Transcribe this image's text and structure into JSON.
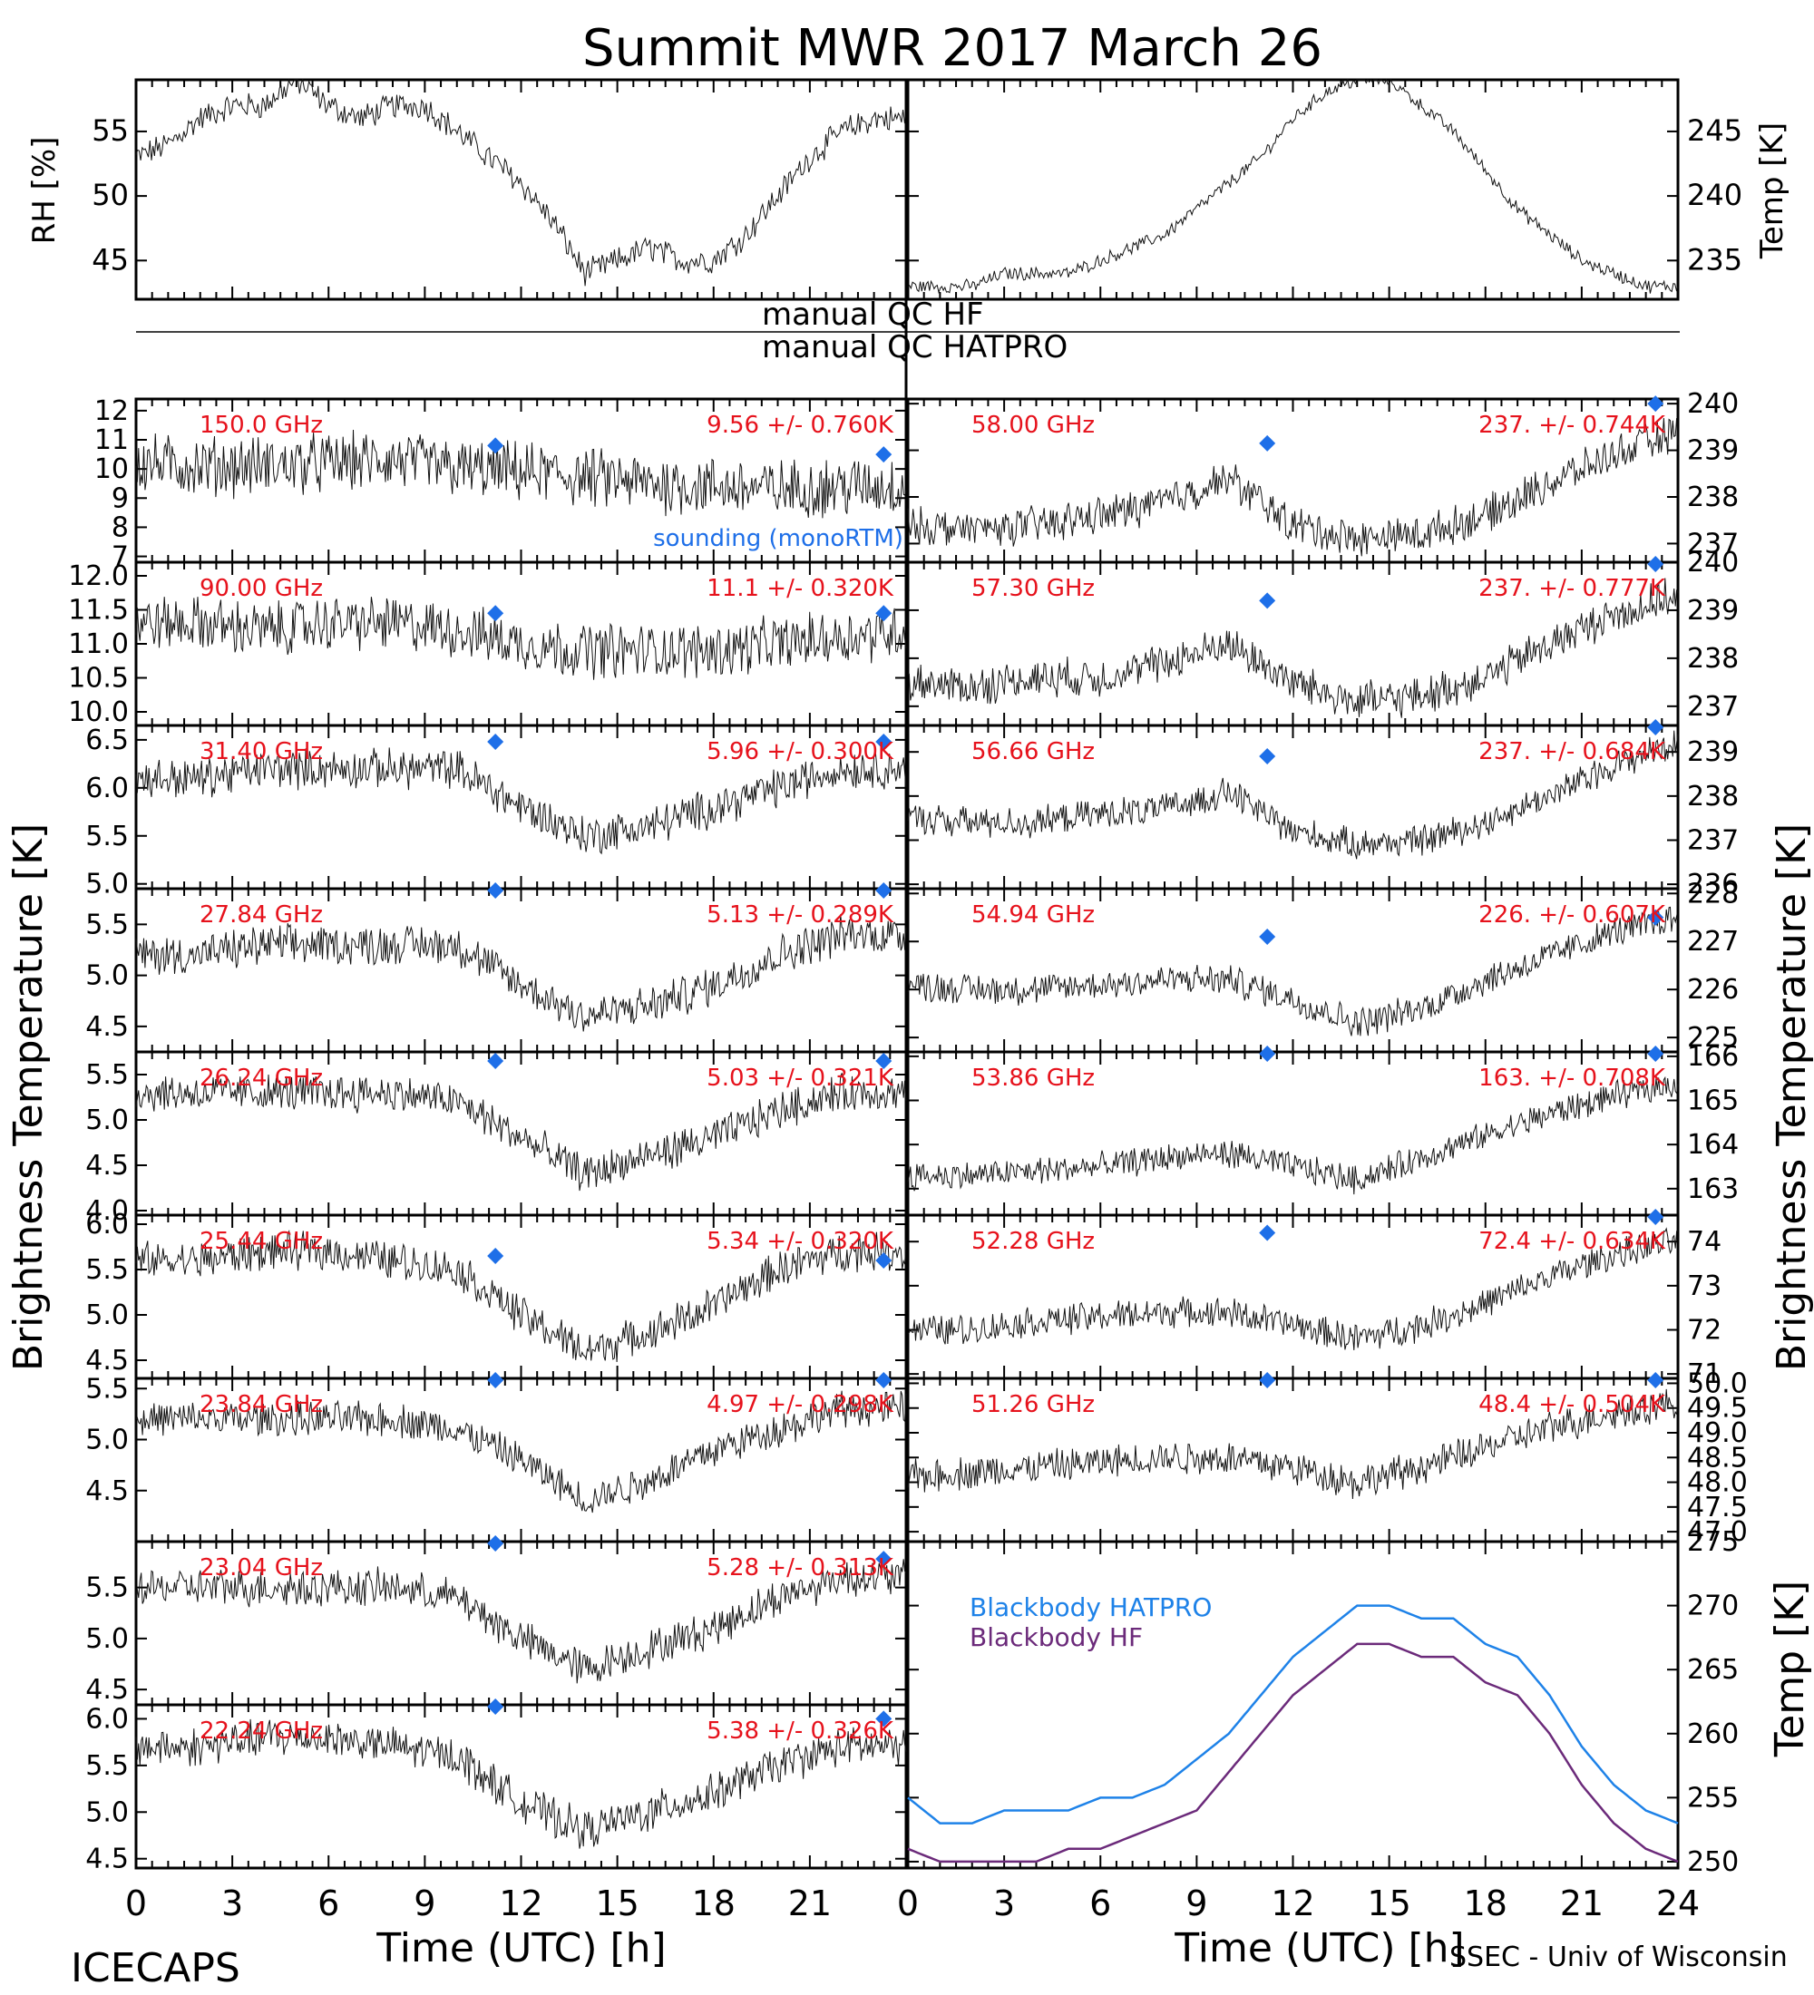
{
  "title": "Summit MWR 2017 March 26",
  "footer": {
    "left": "ICECAPS",
    "right": "SSEC - Univ of Wisconsin"
  },
  "qc": {
    "hf": "manual QC HF",
    "hatpro": "manual QC HATPRO"
  },
  "axes": {
    "xlabel": "Time (UTC) [h]",
    "ylabel_tb": "Brightness Temperature [K]",
    "left_ticks": [
      "0",
      "3",
      "6",
      "9",
      "12",
      "15",
      "18",
      "21"
    ],
    "right_ticks": [
      "0",
      "3",
      "6",
      "9",
      "12",
      "15",
      "18",
      "21",
      "24"
    ],
    "met_left_ylabel": "RH [%]",
    "met_right_ylabel": "Temp [K]",
    "bb_ylabel": "Temp [K]"
  },
  "colors": {
    "sounding": "#1e6fe8",
    "hatpro": "#1e82e8",
    "hf": "#6b2a7a",
    "label": "#e6121c"
  },
  "chart_data": [
    {
      "type": "line",
      "name": "RH",
      "x": [
        0,
        1,
        2,
        3,
        4,
        5,
        6,
        7,
        8,
        9,
        10,
        11,
        12,
        13,
        14,
        15,
        16,
        17,
        18,
        19,
        20,
        21,
        22,
        23,
        24
      ],
      "y": [
        53,
        54,
        56,
        57,
        57,
        59,
        57,
        56,
        57,
        57,
        55,
        53,
        51,
        48,
        44,
        45,
        46,
        45,
        45,
        47,
        50,
        53,
        55,
        56,
        56
      ],
      "ylim": [
        42,
        59
      ],
      "ticks": [
        45,
        50,
        55
      ]
    },
    {
      "type": "line",
      "name": "Temp",
      "x": [
        0,
        1,
        2,
        3,
        4,
        5,
        6,
        7,
        8,
        9,
        10,
        11,
        12,
        13,
        14,
        15,
        16,
        17,
        18,
        19,
        20,
        21,
        22,
        23,
        24
      ],
      "y": [
        233,
        233,
        233,
        234,
        234,
        234,
        235,
        236,
        237,
        239,
        241,
        243,
        246,
        248,
        249,
        249,
        247,
        245,
        242,
        239,
        237,
        235,
        234,
        233,
        233
      ],
      "ylim": [
        232,
        249
      ],
      "ticks": [
        235,
        240,
        245
      ]
    },
    {
      "type": "scatter",
      "series_name": "sounding (monoRTM)",
      "sounding_x": [
        11.2,
        23.3
      ],
      "x": [
        0,
        2,
        4,
        6,
        8,
        10,
        12,
        14,
        16,
        18,
        20,
        22,
        24
      ],
      "panels": [
        {
          "freq": "150.0 GHz",
          "stats": "9.56 +/- 0.760K",
          "side": "left",
          "ylim": [
            6.8,
            12.4
          ],
          "ticks": [
            7,
            8,
            9,
            10,
            11,
            12
          ],
          "tick_fmt": 0,
          "noise": 0.9,
          "y": [
            10.2,
            10.1,
            10.1,
            10.2,
            10.3,
            10.0,
            9.9,
            9.7,
            9.5,
            9.4,
            9.3,
            9.4,
            9.4
          ],
          "sounding": [
            10.8,
            10.5
          ]
        },
        {
          "freq": "90.00 GHz",
          "stats": "11.1 +/- 0.320K",
          "side": "left",
          "ylim": [
            9.8,
            12.2
          ],
          "ticks": [
            10.0,
            10.5,
            11.0,
            11.5,
            12.0
          ],
          "tick_fmt": 1,
          "noise": 0.35,
          "y": [
            11.3,
            11.3,
            11.2,
            11.3,
            11.3,
            11.2,
            11.0,
            10.9,
            10.9,
            10.9,
            11.0,
            11.1,
            11.2
          ],
          "sounding": [
            11.45,
            11.45
          ]
        },
        {
          "freq": "31.40 GHz",
          "stats": "5.96 +/- 0.300K",
          "side": "left",
          "ylim": [
            4.95,
            6.65
          ],
          "ticks": [
            5.0,
            5.5,
            6.0,
            6.5
          ],
          "tick_fmt": 1,
          "noise": 0.18,
          "y": [
            6.1,
            6.1,
            6.2,
            6.2,
            6.2,
            6.2,
            5.8,
            5.5,
            5.6,
            5.8,
            6.0,
            6.2,
            6.2
          ],
          "sounding": [
            6.48,
            6.48
          ]
        },
        {
          "freq": "27.84 GHz",
          "stats": "5.13 +/- 0.289K",
          "side": "left",
          "ylim": [
            4.25,
            5.85
          ],
          "ticks": [
            4.5,
            5.0,
            5.5
          ],
          "tick_fmt": 1,
          "noise": 0.17,
          "y": [
            5.2,
            5.2,
            5.3,
            5.3,
            5.3,
            5.3,
            4.9,
            4.6,
            4.7,
            4.9,
            5.2,
            5.4,
            5.4
          ],
          "sounding": [
            5.85,
            5.85
          ]
        },
        {
          "freq": "26.24 GHz",
          "stats": "5.03 +/- 0.321K",
          "side": "left",
          "ylim": [
            3.95,
            5.75
          ],
          "ticks": [
            4.0,
            4.5,
            5.0,
            5.5
          ],
          "tick_fmt": 1,
          "noise": 0.18,
          "y": [
            5.3,
            5.3,
            5.3,
            5.3,
            5.3,
            5.2,
            4.8,
            4.4,
            4.6,
            4.8,
            5.1,
            5.3,
            5.3
          ],
          "sounding": [
            5.65,
            5.65
          ]
        },
        {
          "freq": "25.44 GHz",
          "stats": "5.34 +/- 0.320K",
          "side": "left",
          "ylim": [
            4.3,
            6.1
          ],
          "ticks": [
            4.5,
            5.0,
            5.5,
            6.0
          ],
          "tick_fmt": 1,
          "noise": 0.18,
          "y": [
            5.6,
            5.6,
            5.7,
            5.7,
            5.6,
            5.5,
            5.0,
            4.6,
            4.8,
            5.1,
            5.5,
            5.7,
            5.7
          ],
          "sounding": [
            5.65,
            5.6
          ]
        },
        {
          "freq": "23.84 GHz",
          "stats": "4.97 +/- 0.298K",
          "side": "left",
          "ylim": [
            4.0,
            5.6
          ],
          "ticks": [
            4.5,
            5.0,
            5.5
          ],
          "tick_fmt": 1,
          "noise": 0.15,
          "y": [
            5.2,
            5.2,
            5.2,
            5.2,
            5.2,
            5.1,
            4.8,
            4.4,
            4.6,
            4.9,
            5.1,
            5.3,
            5.3
          ],
          "sounding": [
            5.6,
            5.6
          ]
        },
        {
          "freq": "23.04 GHz",
          "stats": "5.28 +/- 0.313K",
          "side": "left",
          "ylim": [
            4.35,
            5.95
          ],
          "ticks": [
            4.5,
            5.0,
            5.5
          ],
          "tick_fmt": 1,
          "noise": 0.16,
          "y": [
            5.5,
            5.5,
            5.5,
            5.5,
            5.5,
            5.4,
            5.0,
            4.7,
            4.9,
            5.1,
            5.4,
            5.6,
            5.6
          ],
          "sounding": [
            5.95,
            5.78
          ]
        },
        {
          "freq": "22.24 GHz",
          "stats": "5.38 +/- 0.326K",
          "side": "left",
          "ylim": [
            4.4,
            6.15
          ],
          "ticks": [
            4.5,
            5.0,
            5.5,
            6.0
          ],
          "tick_fmt": 1,
          "noise": 0.18,
          "y": [
            5.7,
            5.7,
            5.8,
            5.8,
            5.7,
            5.6,
            5.1,
            4.8,
            5.0,
            5.2,
            5.5,
            5.7,
            5.7
          ],
          "sounding": [
            6.15,
            6.0
          ]
        },
        {
          "freq": "58.00 GHz",
          "stats": "237. +/- 0.744K",
          "side": "right",
          "ylim": [
            236.6,
            240.1
          ],
          "ticks": [
            237,
            238,
            239,
            240
          ],
          "tick_fmt": 0,
          "noise": 0.35,
          "y": [
            237.4,
            237.3,
            237.4,
            237.6,
            237.9,
            238.4,
            237.4,
            237.1,
            237.2,
            237.6,
            238.3,
            238.9,
            239.4
          ],
          "sounding": [
            239.15,
            240.0
          ]
        },
        {
          "freq": "57.30 GHz",
          "stats": "237. +/- 0.777K",
          "side": "right",
          "ylim": [
            236.6,
            240.0
          ],
          "ticks": [
            237,
            238,
            239,
            240
          ],
          "tick_fmt": 0,
          "noise": 0.35,
          "y": [
            237.5,
            237.4,
            237.6,
            237.6,
            237.9,
            238.3,
            237.5,
            237.1,
            237.2,
            237.6,
            238.3,
            238.9,
            239.3
          ],
          "sounding": [
            239.2,
            240.0
          ]
        },
        {
          "freq": "56.66 GHz",
          "stats": "237. +/- 0.684K",
          "side": "right",
          "ylim": [
            235.9,
            239.6
          ],
          "ticks": [
            236,
            237,
            238,
            239
          ],
          "tick_fmt": 0,
          "noise": 0.3,
          "y": [
            237.5,
            237.4,
            237.4,
            237.6,
            237.7,
            238.1,
            237.2,
            236.9,
            237.0,
            237.4,
            238.0,
            238.7,
            239.2
          ],
          "sounding": [
            238.9,
            239.6
          ]
        },
        {
          "freq": "54.94 GHz",
          "stats": "226. +/- 0.607K",
          "side": "right",
          "ylim": [
            224.7,
            228.1
          ],
          "ticks": [
            225,
            226,
            227,
            228
          ],
          "tick_fmt": 0,
          "noise": 0.28,
          "y": [
            226.1,
            226.0,
            226.0,
            226.1,
            226.2,
            226.2,
            225.8,
            225.3,
            225.6,
            226.2,
            226.7,
            227.2,
            227.5
          ],
          "sounding": [
            227.1,
            227.5
          ]
        },
        {
          "freq": "53.86 GHz",
          "stats": "163. +/- 0.708K",
          "side": "right",
          "ylim": [
            162.4,
            166.1
          ],
          "ticks": [
            163,
            164,
            165,
            166
          ],
          "tick_fmt": 0,
          "noise": 0.28,
          "y": [
            163.3,
            163.3,
            163.4,
            163.5,
            163.7,
            163.8,
            163.5,
            163.2,
            163.7,
            164.2,
            164.7,
            165.1,
            165.4
          ],
          "sounding": [
            166.1,
            166.1
          ]
        },
        {
          "freq": "52.28 GHz",
          "stats": "72.4 +/- 0.634K",
          "side": "right",
          "ylim": [
            70.9,
            74.6
          ],
          "ticks": [
            71,
            72,
            73,
            74
          ],
          "tick_fmt": 0,
          "noise": 0.3,
          "y": [
            72.0,
            72.0,
            72.2,
            72.3,
            72.4,
            72.4,
            72.1,
            71.8,
            72.1,
            72.6,
            73.2,
            73.7,
            74.0
          ],
          "sounding": [
            74.2,
            74.6
          ]
        },
        {
          "freq": "51.26 GHz",
          "stats": "48.4 +/- 0.504K",
          "side": "right",
          "ylim": [
            46.8,
            50.1
          ],
          "ticks": [
            47.0,
            47.5,
            48.0,
            48.5,
            49.0,
            49.5,
            50.0
          ],
          "tick_fmt": 1,
          "noise": 0.3,
          "y": [
            48.1,
            48.2,
            48.3,
            48.4,
            48.5,
            48.5,
            48.3,
            48.0,
            48.3,
            48.7,
            49.1,
            49.4,
            49.6
          ],
          "sounding": [
            50.2,
            50.2
          ]
        }
      ]
    },
    {
      "type": "line",
      "name": "Blackbody",
      "x": [
        0,
        1,
        2,
        3,
        4,
        5,
        6,
        7,
        8,
        9,
        10,
        11,
        12,
        13,
        14,
        15,
        16,
        17,
        18,
        19,
        20,
        21,
        22,
        23,
        24
      ],
      "series": [
        {
          "name": "Blackbody HATPRO",
          "color": "#1e82e8",
          "y": [
            255,
            253,
            253,
            254,
            254,
            254,
            255,
            255,
            256,
            258,
            260,
            263,
            266,
            268,
            270,
            270,
            269,
            269,
            267,
            266,
            263,
            259,
            256,
            254,
            253
          ]
        },
        {
          "name": "Blackbody HF",
          "color": "#6b2a7a",
          "y": [
            251,
            250,
            250,
            250,
            250,
            251,
            251,
            252,
            253,
            254,
            257,
            260,
            263,
            265,
            267,
            267,
            266,
            266,
            264,
            263,
            260,
            256,
            253,
            251,
            250
          ]
        }
      ],
      "ylim": [
        249.5,
        275
      ],
      "ticks": [
        250,
        255,
        260,
        265,
        270,
        275
      ]
    }
  ]
}
